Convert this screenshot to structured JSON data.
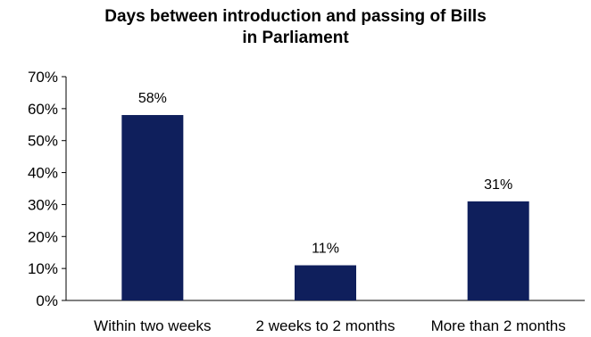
{
  "chart_data": {
    "type": "bar",
    "title_lines": [
      "Days between introduction and passing of Bills",
      "in Parliament"
    ],
    "categories": [
      "Within two weeks",
      "2 weeks to 2 months",
      "More than 2 months"
    ],
    "values": [
      58,
      11,
      31
    ],
    "data_labels": [
      "58%",
      "11%",
      "31%"
    ],
    "ylim": [
      0,
      70
    ],
    "yticks": [
      0,
      10,
      20,
      30,
      40,
      50,
      60,
      70
    ],
    "ytick_labels": [
      "0%",
      "10%",
      "20%",
      "30%",
      "40%",
      "50%",
      "60%",
      "70%"
    ],
    "grid": false,
    "legend": "none",
    "bar_color": "#0f1f5c",
    "axis_color": "#000000"
  }
}
